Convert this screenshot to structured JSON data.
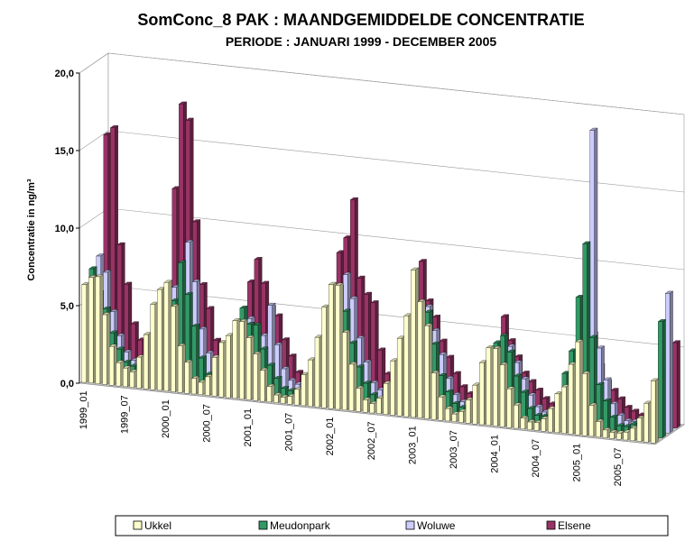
{
  "chart_data": {
    "type": "bar3d",
    "title": "SomConc_8 PAK : MAANDGEMIDDELDE CONCENTRATIE",
    "subtitle": "PERIODE : JANUARI 1999 - DECEMBER 2005",
    "y_label": "Concentratie in ng/m³",
    "categories": [
      "1999_01",
      null,
      null,
      null,
      null,
      null,
      "1999_07",
      null,
      null,
      null,
      null,
      null,
      "2000_01",
      null,
      null,
      null,
      null,
      null,
      "2000_07",
      null,
      null,
      null,
      null,
      null,
      "2001_01",
      null,
      null,
      null,
      null,
      null,
      "2001_07",
      null,
      null,
      null,
      null,
      null,
      "2002_01",
      null,
      null,
      null,
      null,
      null,
      "2002_07",
      null,
      null,
      null,
      null,
      null,
      "2003_01",
      null,
      null,
      null,
      null,
      null,
      "2003_07",
      null,
      null,
      null,
      null,
      null,
      "2004_01",
      null,
      null,
      null,
      null,
      null,
      "2004_07",
      null,
      null,
      null,
      null,
      null,
      "2005_01",
      null,
      null,
      null,
      null,
      null,
      "2005_07",
      null,
      null,
      null,
      null,
      null
    ],
    "ylim": [
      0,
      20
    ],
    "yticks": [
      {
        "value": 0,
        "label": "0,0"
      },
      {
        "value": 5,
        "label": "5,0"
      },
      {
        "value": 10,
        "label": "10,0"
      },
      {
        "value": 15,
        "label": "15,0"
      },
      {
        "value": 20,
        "label": "20,0"
      }
    ],
    "grid": true,
    "legend": "bottom",
    "series": [
      {
        "name": "Ukkel",
        "color": "#ffffcc",
        "values": [
          6.3,
          6.8,
          6.9,
          4.5,
          2.5,
          1.5,
          1.2,
          1.0,
          2.0,
          3.5,
          5.5,
          6.5,
          7.0,
          5.5,
          3.0,
          2.0,
          1.0,
          0.8,
          1.2,
          2.5,
          3.5,
          4.0,
          5.0,
          5.0,
          4.0,
          3.0,
          2.0,
          1.0,
          0.5,
          0.4,
          0.5,
          1.0,
          2.0,
          3.0,
          4.5,
          6.5,
          8.0,
          8.0,
          5.0,
          3.0,
          1.5,
          0.8,
          0.6,
          1.0,
          2.0,
          3.5,
          5.0,
          6.5,
          9.5,
          7.5,
          6.0,
          3.0,
          1.5,
          0.8,
          0.5,
          0.7,
          1.5,
          2.5,
          4.0,
          5.0,
          5.0,
          4.0,
          2.5,
          1.5,
          0.7,
          0.5,
          0.5,
          0.8,
          1.5,
          2.5,
          3.0,
          4.5,
          6.0,
          4.0,
          2.0,
          1.0,
          0.5,
          0.4,
          0.4,
          0.5,
          0.8,
          1.5,
          2.5,
          4.0
        ]
      },
      {
        "name": "Meudonpark",
        "color": "#339966",
        "values": [
          7.0,
          5.5,
          4.5,
          3.0,
          2.0,
          1.2,
          1.0,
          1.5,
          2.5,
          4.0,
          5.5,
          4.5,
          5.5,
          8.0,
          6.0,
          4.0,
          2.0,
          1.0,
          1.0,
          2.5,
          3.5,
          4.5,
          5.5,
          4.5,
          4.5,
          3.0,
          2.0,
          1.2,
          0.6,
          0.5,
          0.6,
          1.0,
          2.0,
          3.0,
          5.0,
          6.5,
          7.5,
          6.0,
          4.0,
          2.5,
          1.5,
          0.8,
          0.6,
          1.0,
          2.0,
          3.5,
          6.0,
          7.0,
          7.0,
          6.5,
          4.5,
          2.5,
          1.5,
          0.8,
          0.6,
          0.8,
          2.0,
          3.0,
          4.5,
          5.0,
          5.5,
          4.5,
          3.0,
          2.0,
          1.0,
          0.6,
          0.6,
          1.0,
          2.0,
          3.5,
          5.0,
          8.5,
          12.0,
          6.0,
          3.0,
          2.0,
          1.0,
          0.5,
          0.5,
          0.7,
          1.0,
          2.0,
          3.5,
          7.5
        ]
      },
      {
        "name": "Woluwe",
        "color": "#ccccff",
        "values": [
          7.5,
          6.5,
          4.0,
          2.5,
          1.5,
          1.0,
          1.0,
          1.5,
          2.5,
          3.5,
          5.0,
          6.0,
          6.5,
          9.0,
          6.5,
          3.5,
          2.0,
          1.2,
          1.0,
          2.0,
          3.0,
          4.0,
          4.5,
          3.5,
          3.5,
          5.5,
          3.0,
          1.5,
          0.8,
          0.6,
          0.5,
          1.0,
          2.0,
          3.0,
          4.5,
          6.5,
          8.0,
          6.5,
          4.0,
          2.5,
          1.2,
          0.8,
          0.6,
          1.0,
          2.0,
          3.0,
          5.0,
          6.5,
          6.5,
          5.0,
          3.5,
          2.0,
          1.0,
          0.6,
          0.5,
          0.7,
          1.5,
          2.5,
          3.5,
          4.5,
          4.5,
          3.5,
          2.5,
          1.5,
          0.8,
          0.5,
          0.5,
          0.8,
          1.5,
          2.5,
          3.5,
          5.5,
          19.0,
          5.0,
          3.0,
          1.5,
          0.8,
          0.5,
          0.5,
          0.7,
          1.0,
          2.0,
          4.5,
          9.0
        ]
      },
      {
        "name": "Elsene",
        "color": "#993366",
        "values": [
          15.0,
          15.5,
          8.0,
          5.5,
          3.0,
          2.0,
          1.5,
          2.0,
          4.0,
          5.5,
          12.0,
          17.5,
          16.5,
          10.0,
          6.0,
          4.5,
          2.5,
          1.5,
          1.2,
          2.5,
          4.0,
          6.5,
          8.0,
          6.5,
          5.0,
          4.5,
          3.0,
          2.0,
          1.0,
          0.8,
          0.8,
          1.5,
          3.0,
          5.0,
          9.0,
          10.0,
          12.5,
          7.5,
          6.5,
          6.0,
          3.0,
          1.5,
          1.0,
          1.5,
          3.0,
          5.0,
          9.0,
          6.5,
          5.5,
          4.0,
          3.0,
          2.0,
          1.2,
          0.8,
          0.6,
          1.0,
          2.0,
          4.0,
          6.0,
          4.5,
          3.5,
          2.5,
          2.0,
          1.5,
          1.0,
          0.7,
          0.7,
          1.0,
          2.0,
          3.0,
          4.5,
          5.5,
          3.5,
          2.5,
          2.0,
          1.5,
          1.0,
          0.8,
          0.6,
          0.8,
          1.5,
          2.5,
          3.5,
          5.5
        ]
      }
    ]
  }
}
